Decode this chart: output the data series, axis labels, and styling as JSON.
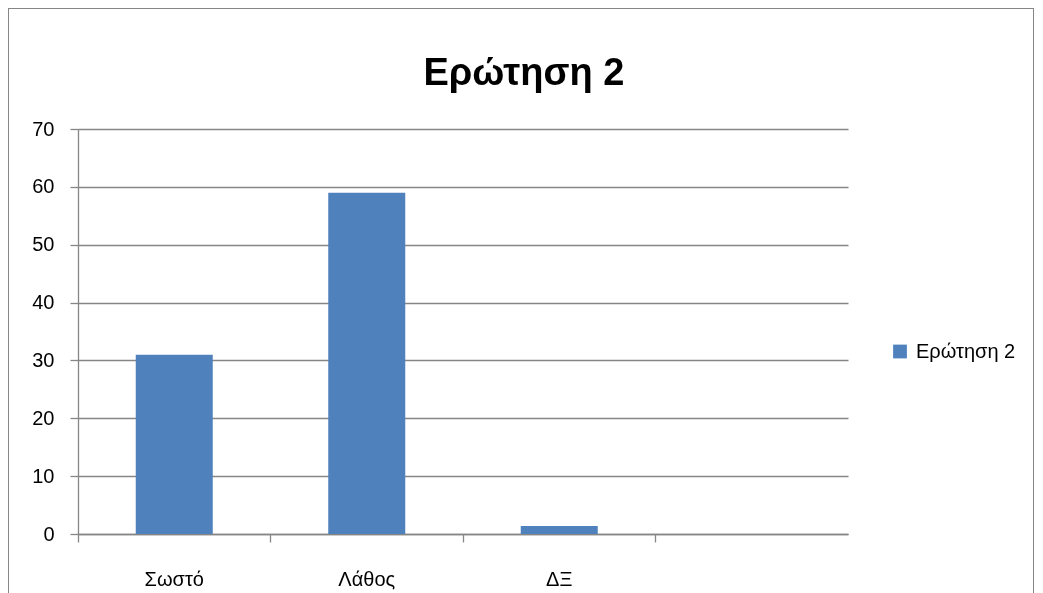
{
  "chart_data": {
    "type": "bar",
    "title": "Ερώτηση 2",
    "categories": [
      "Σωστό",
      "Λάθος",
      "ΔΞ",
      null
    ],
    "series": [
      {
        "name": "Ερώτηση 2",
        "color": "#4f81bd",
        "values": [
          31,
          59,
          1.4,
          null
        ]
      }
    ],
    "ylim": [
      0,
      70
    ],
    "yticks": [
      0,
      10,
      20,
      30,
      40,
      50,
      60,
      70
    ],
    "grid": "y",
    "legend": "right"
  }
}
